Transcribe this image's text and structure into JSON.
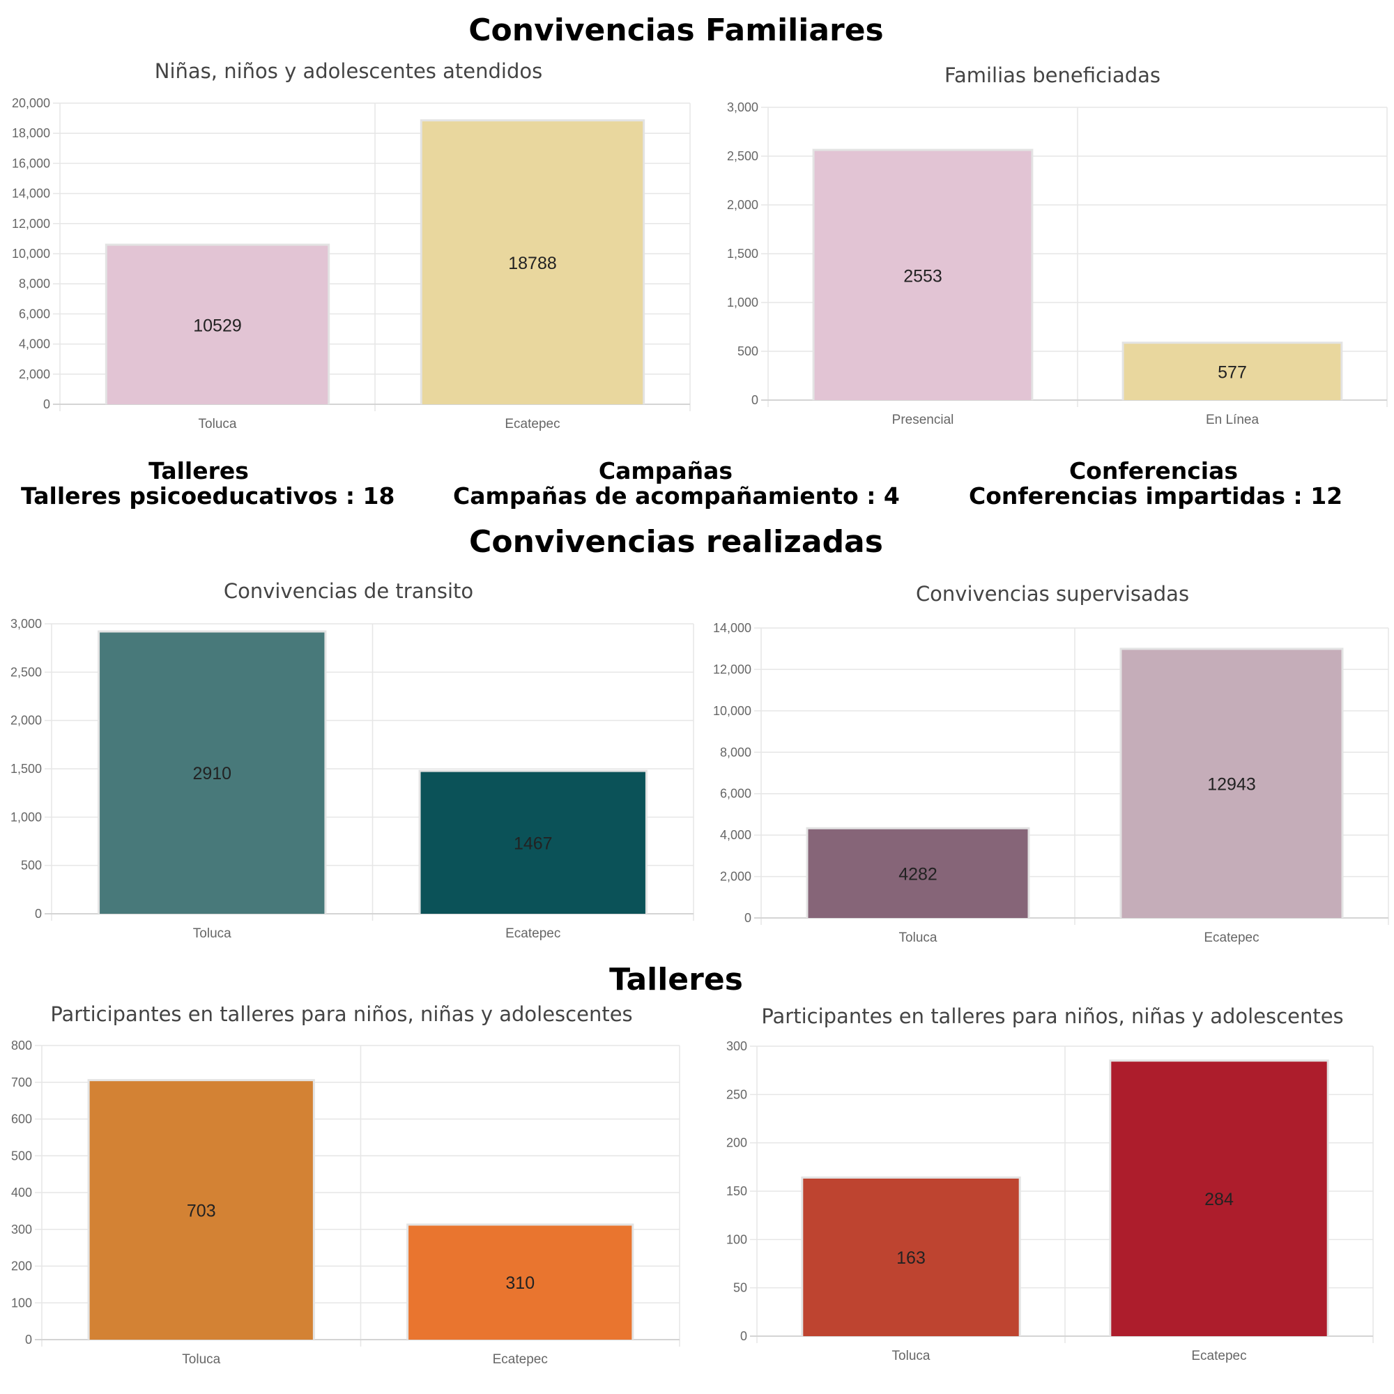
{
  "sections": {
    "familiares": "Convivencias Familiares",
    "realizadas": "Convivencias realizadas",
    "talleres": "Talleres"
  },
  "stats": [
    {
      "title": "Talleres",
      "text": "Talleres psicoeducativos : 18"
    },
    {
      "title": "Campañas",
      "text": "Campañas de acompañamiento : 4"
    },
    {
      "title": "Conferencias",
      "text": "Conferencias impartidas : 12"
    }
  ],
  "chart_data": [
    {
      "type": "bar",
      "title": "Niñas, niños y adolescentes atendidos",
      "categories": [
        "Toluca",
        "Ecatepec"
      ],
      "values": [
        10529,
        18788
      ],
      "colors": [
        "#e2c4d4",
        "#e9d79e"
      ],
      "ylim": [
        0,
        20000
      ],
      "yticks": [
        0,
        2000,
        4000,
        6000,
        8000,
        10000,
        12000,
        14000,
        16000,
        18000,
        20000
      ],
      "ytick_labels": [
        "0",
        "2,000",
        "4,000",
        "6,000",
        "8,000",
        "10,000",
        "12,000",
        "14,000",
        "16,000",
        "18,000",
        "20,000"
      ],
      "grid": true
    },
    {
      "type": "bar",
      "title": "Familias beneficiadas",
      "categories": [
        "Presencial",
        "En Línea"
      ],
      "values": [
        2553,
        577
      ],
      "colors": [
        "#e2c4d4",
        "#e9d79e"
      ],
      "ylim": [
        0,
        3000
      ],
      "yticks": [
        0,
        500,
        1000,
        1500,
        2000,
        2500,
        3000
      ],
      "ytick_labels": [
        "0",
        "500",
        "1,000",
        "1,500",
        "2,000",
        "2,500",
        "3,000"
      ],
      "grid": true
    },
    {
      "type": "bar",
      "title": "Convivencias de transito",
      "categories": [
        "Toluca",
        "Ecatepec"
      ],
      "values": [
        2910,
        1467
      ],
      "colors": [
        "#48797a",
        "#0b5258"
      ],
      "ylim": [
        0,
        3000
      ],
      "yticks": [
        0,
        500,
        1000,
        1500,
        2000,
        2500,
        3000
      ],
      "ytick_labels": [
        "0",
        "500",
        "1,000",
        "1,500",
        "2,000",
        "2,500",
        "3,000"
      ],
      "grid": true
    },
    {
      "type": "bar",
      "title": "Convivencias supervisadas",
      "categories": [
        "Toluca",
        "Ecatepec"
      ],
      "values": [
        4282,
        12943
      ],
      "colors": [
        "#866578",
        "#c5adb9"
      ],
      "ylim": [
        0,
        14000
      ],
      "yticks": [
        0,
        2000,
        4000,
        6000,
        8000,
        10000,
        12000,
        14000
      ],
      "ytick_labels": [
        "0",
        "2,000",
        "4,000",
        "6,000",
        "8,000",
        "10,000",
        "12,000",
        "14,000"
      ],
      "grid": true
    },
    {
      "type": "bar",
      "title": "Participantes en talleres para niños, niñas y adolescentes",
      "categories": [
        "Toluca",
        "Ecatepec"
      ],
      "values": [
        703,
        310
      ],
      "colors": [
        "#d38234",
        "#e9752f"
      ],
      "ylim": [
        0,
        800
      ],
      "yticks": [
        0,
        100,
        200,
        300,
        400,
        500,
        600,
        700,
        800
      ],
      "ytick_labels": [
        "0",
        "100",
        "200",
        "300",
        "400",
        "500",
        "600",
        "700",
        "800"
      ],
      "grid": true
    },
    {
      "type": "bar",
      "title": "Participantes en talleres para niños, niñas y adolescentes",
      "categories": [
        "Toluca",
        "Ecatepec"
      ],
      "values": [
        163,
        284
      ],
      "colors": [
        "#be4430",
        "#ad1d2c"
      ],
      "ylim": [
        0,
        300
      ],
      "yticks": [
        0,
        50,
        100,
        150,
        200,
        250,
        300
      ],
      "ytick_labels": [
        "0",
        "50",
        "100",
        "150",
        "200",
        "250",
        "300"
      ],
      "grid": true
    }
  ]
}
